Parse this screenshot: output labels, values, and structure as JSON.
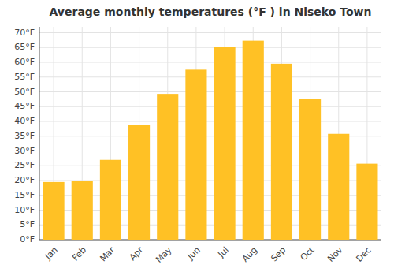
{
  "chart_data": {
    "type": "bar",
    "title": "Average monthly temperatures (°F ) in Niseko Town",
    "categories": [
      "Jan",
      "Feb",
      "Mar",
      "Apr",
      "May",
      "Jun",
      "Jul",
      "Aug",
      "Sep",
      "Oct",
      "Nov",
      "Dec"
    ],
    "values": [
      19.5,
      19.8,
      27.0,
      38.8,
      49.3,
      57.5,
      65.3,
      67.3,
      59.5,
      47.5,
      35.8,
      25.7
    ],
    "color": "#FFC125",
    "ylim": [
      0,
      72
    ],
    "yticks": [
      {
        "value": 0,
        "label": "0°F"
      },
      {
        "value": 5,
        "label": "5°F"
      },
      {
        "value": 10,
        "label": "10°F"
      },
      {
        "value": 15,
        "label": "15°F"
      },
      {
        "value": 20,
        "label": "20°F"
      },
      {
        "value": 25,
        "label": "25°F"
      },
      {
        "value": 30,
        "label": "30°F"
      },
      {
        "value": 35,
        "label": "35°F"
      },
      {
        "value": 40,
        "label": "40°F"
      },
      {
        "value": 45,
        "label": "45°F"
      },
      {
        "value": 50,
        "label": "50°F"
      },
      {
        "value": 55,
        "label": "55°F"
      },
      {
        "value": 60,
        "label": "60°F"
      },
      {
        "value": 65,
        "label": "65°F"
      },
      {
        "value": 70,
        "label": "70°F"
      }
    ],
    "grid": true
  }
}
